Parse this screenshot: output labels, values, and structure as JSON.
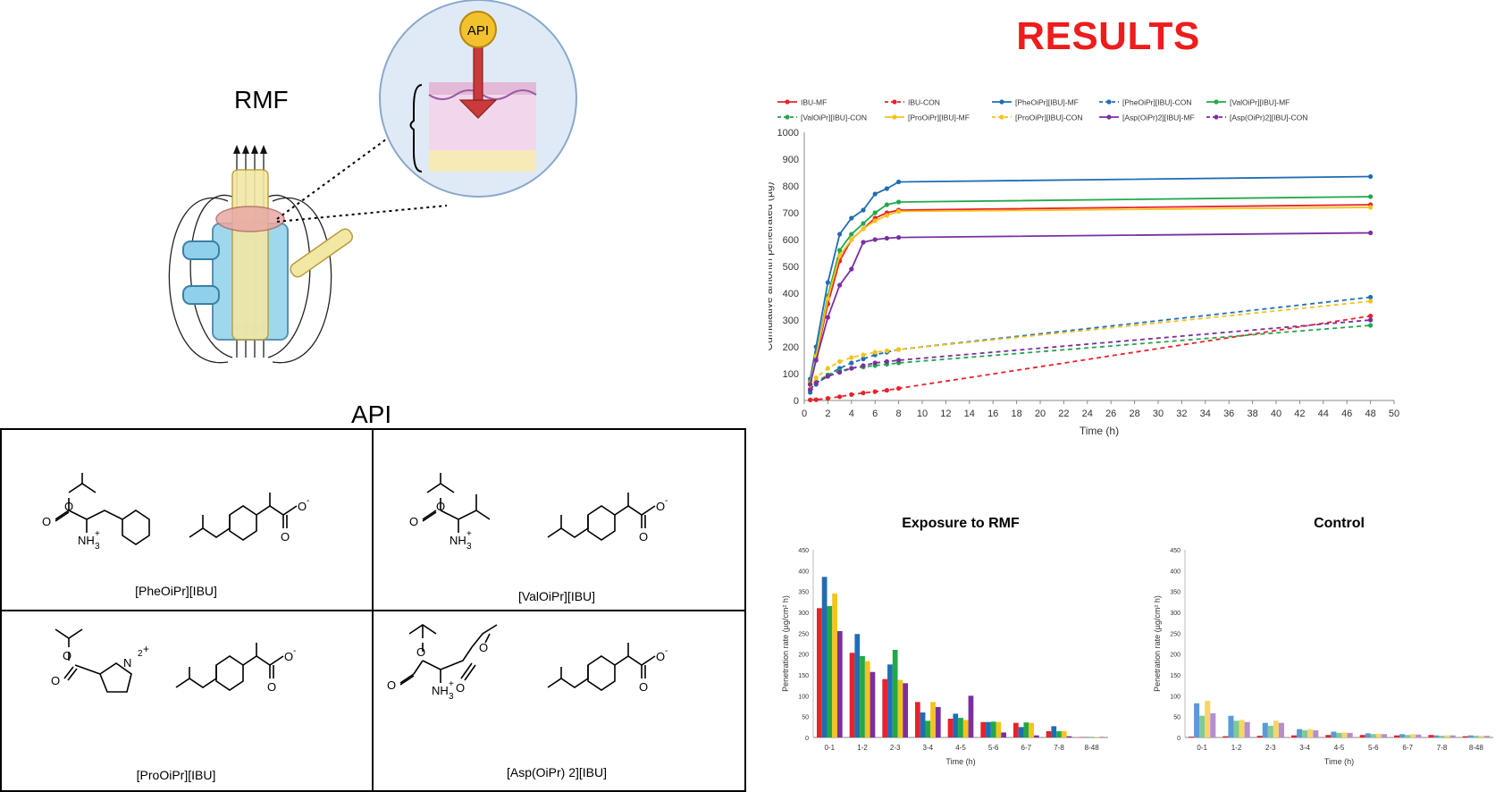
{
  "results_title": "RESULTS",
  "left": {
    "rmf_label": "RMF",
    "api_badge": "API",
    "api_section_label": "API",
    "compounds": [
      "[PheOiPr][IBU]",
      "[ValOiPr][IBU]",
      "[ProOiPr][IBU]",
      "[Asp(OiPr) 2][IBU]"
    ],
    "atom_labels": {
      "o": "O",
      "o_minus": "O",
      "minus": "-",
      "nh3": "NH",
      "h2": "H",
      "n": "N",
      "plus": "+",
      "sub3": "3",
      "sub2": "2"
    }
  },
  "colors": {
    "ibu": "#e8222b",
    "phe": "#1f6db5",
    "val": "#22a84a",
    "pro": "#f5c31a",
    "asp": "#7b2fa0"
  },
  "chart_data": [
    {
      "type": "line",
      "title": "",
      "xlabel": "Time (h)",
      "ylabel": "Cumulative amonth penetrated (µg)",
      "xlim": [
        0,
        50
      ],
      "ylim": [
        0,
        1000
      ],
      "xticks": [
        0,
        2,
        4,
        6,
        8,
        10,
        12,
        14,
        16,
        18,
        20,
        22,
        24,
        26,
        28,
        30,
        32,
        34,
        36,
        38,
        40,
        42,
        44,
        46,
        48,
        50
      ],
      "yticks": [
        0,
        100,
        200,
        300,
        400,
        500,
        600,
        700,
        800,
        900,
        1000
      ],
      "legend_position": "top",
      "x": [
        0.5,
        1,
        2,
        3,
        4,
        5,
        6,
        7,
        8,
        48
      ],
      "series": [
        {
          "name": "IBU-MF",
          "color": "#e8222b",
          "dashed": false,
          "values": [
            60,
            160,
            360,
            520,
            600,
            640,
            680,
            700,
            710,
            730
          ]
        },
        {
          "name": "IBU-CON",
          "color": "#e8222b",
          "dashed": true,
          "values": [
            2,
            3,
            8,
            14,
            22,
            28,
            33,
            38,
            45,
            315
          ]
        },
        {
          "name": "[PheOiPr][IBU]-MF",
          "color": "#1f6db5",
          "dashed": false,
          "values": [
            80,
            200,
            440,
            620,
            680,
            710,
            770,
            790,
            815,
            835
          ]
        },
        {
          "name": "[PheOiPr][IBU]-CON",
          "color": "#1f6db5",
          "dashed": true,
          "values": [
            30,
            60,
            95,
            120,
            140,
            155,
            170,
            180,
            190,
            385
          ]
        },
        {
          "name": "[ValOiPr][IBU]-MF",
          "color": "#22a84a",
          "dashed": false,
          "values": [
            70,
            170,
            390,
            560,
            620,
            660,
            700,
            730,
            740,
            760
          ]
        },
        {
          "name": "[ValOiPr][IBU]-CON",
          "color": "#22a84a",
          "dashed": true,
          "values": [
            40,
            70,
            95,
            110,
            120,
            125,
            130,
            135,
            140,
            280
          ]
        },
        {
          "name": "[ProOiPr][IBU]-MF",
          "color": "#f5c31a",
          "dashed": false,
          "values": [
            65,
            165,
            380,
            540,
            600,
            640,
            670,
            690,
            705,
            720
          ]
        },
        {
          "name": "[ProOiPr][IBU]-CON",
          "color": "#f5c31a",
          "dashed": true,
          "values": [
            45,
            85,
            120,
            145,
            160,
            170,
            180,
            185,
            190,
            370
          ]
        },
        {
          "name": "[Asp(OiPr)2][IBU]-MF",
          "color": "#7b2fa0",
          "dashed": false,
          "values": [
            60,
            150,
            310,
            430,
            490,
            590,
            600,
            605,
            608,
            625
          ]
        },
        {
          "name": "[Asp(OiPr)2][IBU]-CON",
          "color": "#7b2fa0",
          "dashed": true,
          "values": [
            40,
            65,
            90,
            105,
            120,
            130,
            140,
            145,
            150,
            300
          ]
        }
      ]
    },
    {
      "type": "bar",
      "title": "Exposure to RMF",
      "xlabel": "Time (h)",
      "ylabel": "Penetration rate (µg/cm² h)",
      "ylim": [
        0,
        450
      ],
      "yticks": [
        0,
        50,
        100,
        150,
        200,
        250,
        300,
        350,
        400,
        450
      ],
      "categories": [
        "0-1",
        "1-2",
        "2-3",
        "3-4",
        "4-5",
        "5-6",
        "6-7",
        "7-8",
        "8-48"
      ],
      "series": [
        {
          "color": "#e8222b",
          "values": [
            310,
            203,
            140,
            85,
            45,
            37,
            35,
            15,
            1
          ]
        },
        {
          "color": "#1f6db5",
          "values": [
            385,
            248,
            175,
            60,
            57,
            37,
            25,
            27,
            1
          ]
        },
        {
          "color": "#22a84a",
          "values": [
            315,
            195,
            210,
            40,
            47,
            38,
            36,
            15,
            1
          ]
        },
        {
          "color": "#f5c31a",
          "values": [
            345,
            183,
            138,
            85,
            42,
            37,
            35,
            15,
            1
          ]
        },
        {
          "color": "#7b2fa0",
          "values": [
            255,
            157,
            130,
            73,
            100,
            12,
            5,
            3,
            1
          ]
        }
      ]
    },
    {
      "type": "bar",
      "title": "Control",
      "xlabel": "Time (h)",
      "ylabel": "Penetration rate (µg/cm² h)",
      "ylim": [
        0,
        450
      ],
      "yticks": [
        0,
        50,
        100,
        150,
        200,
        250,
        300,
        350,
        400,
        450
      ],
      "categories": [
        "0-1",
        "1-2",
        "2-3",
        "3-4",
        "4-5",
        "5-6",
        "6-7",
        "7-8",
        "8-48"
      ],
      "series": [
        {
          "color": "#e8222b",
          "values": [
            2,
            3,
            4,
            5,
            6,
            6,
            5,
            6,
            3
          ]
        },
        {
          "color": "#5a9bd5",
          "values": [
            82,
            52,
            35,
            20,
            14,
            10,
            8,
            5,
            5
          ]
        },
        {
          "color": "#7ecb96",
          "values": [
            52,
            40,
            28,
            17,
            11,
            8,
            6,
            4,
            4
          ]
        },
        {
          "color": "#f5d66b",
          "values": [
            88,
            42,
            40,
            20,
            12,
            9,
            8,
            5,
            4
          ]
        },
        {
          "color": "#b38fcb",
          "values": [
            58,
            37,
            35,
            17,
            11,
            8,
            7,
            5,
            4
          ]
        }
      ]
    }
  ]
}
